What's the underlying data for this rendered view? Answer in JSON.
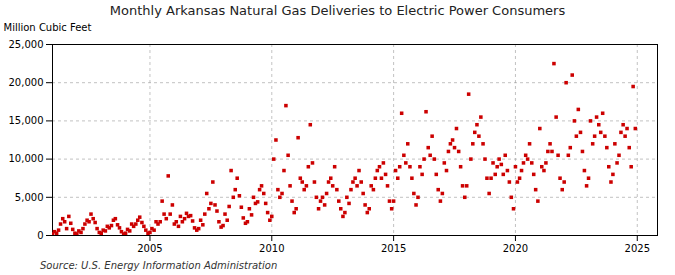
{
  "chart_data": {
    "type": "scatter",
    "title": "Monthly Arkansas Natural Gas Deliveries to Electric Power Consumers",
    "ylabel": "Million Cubic Feet",
    "annotations": [
      "Source: U.S. Energy Information Administration"
    ],
    "color": "#cc0000",
    "marker": "square",
    "grid": true,
    "xlim": [
      2001.0,
      2025.83
    ],
    "xticks": [
      2005,
      2010,
      2015,
      2020,
      2025
    ],
    "ylim": [
      0,
      25000
    ],
    "yticks": [
      0,
      {
        "value": 5000,
        "label": "5,000"
      },
      {
        "value": 10000,
        "label": "10,000"
      },
      {
        "value": 15000,
        "label": "15,000"
      },
      {
        "value": 20000,
        "label": "20,000"
      },
      {
        "value": 25000,
        "label": "25,000"
      }
    ],
    "x": [
      2001.0,
      2001.08,
      2001.17,
      2001.25,
      2001.33,
      2001.42,
      2001.5,
      2001.58,
      2001.67,
      2001.75,
      2001.83,
      2001.92,
      2002.0,
      2002.08,
      2002.17,
      2002.25,
      2002.33,
      2002.42,
      2002.5,
      2002.58,
      2002.67,
      2002.75,
      2002.83,
      2002.92,
      2003.0,
      2003.08,
      2003.17,
      2003.25,
      2003.33,
      2003.42,
      2003.5,
      2003.58,
      2003.67,
      2003.75,
      2003.83,
      2003.92,
      2004.0,
      2004.08,
      2004.17,
      2004.25,
      2004.33,
      2004.42,
      2004.5,
      2004.58,
      2004.67,
      2004.75,
      2004.83,
      2004.92,
      2005.0,
      2005.08,
      2005.17,
      2005.25,
      2005.33,
      2005.42,
      2005.5,
      2005.58,
      2005.67,
      2005.75,
      2005.83,
      2005.92,
      2006.0,
      2006.08,
      2006.17,
      2006.25,
      2006.33,
      2006.42,
      2006.5,
      2006.58,
      2006.67,
      2006.75,
      2006.83,
      2006.92,
      2007.0,
      2007.08,
      2007.17,
      2007.25,
      2007.33,
      2007.42,
      2007.5,
      2007.58,
      2007.67,
      2007.75,
      2007.83,
      2007.92,
      2008.0,
      2008.08,
      2008.17,
      2008.25,
      2008.33,
      2008.42,
      2008.5,
      2008.58,
      2008.67,
      2008.75,
      2008.83,
      2008.92,
      2009.0,
      2009.08,
      2009.17,
      2009.25,
      2009.33,
      2009.42,
      2009.5,
      2009.58,
      2009.67,
      2009.75,
      2009.83,
      2009.92,
      2010.0,
      2010.08,
      2010.17,
      2010.25,
      2010.33,
      2010.42,
      2010.5,
      2010.58,
      2010.67,
      2010.75,
      2010.83,
      2010.92,
      2011.0,
      2011.08,
      2011.17,
      2011.25,
      2011.33,
      2011.42,
      2011.5,
      2011.58,
      2011.67,
      2011.75,
      2011.83,
      2011.92,
      2012.0,
      2012.08,
      2012.17,
      2012.25,
      2012.33,
      2012.42,
      2012.5,
      2012.58,
      2012.67,
      2012.75,
      2012.83,
      2012.92,
      2013.0,
      2013.08,
      2013.17,
      2013.25,
      2013.33,
      2013.42,
      2013.5,
      2013.58,
      2013.67,
      2013.75,
      2013.83,
      2013.92,
      2014.0,
      2014.08,
      2014.17,
      2014.25,
      2014.33,
      2014.42,
      2014.5,
      2014.58,
      2014.67,
      2014.75,
      2014.83,
      2014.92,
      2015.0,
      2015.08,
      2015.17,
      2015.25,
      2015.33,
      2015.42,
      2015.5,
      2015.58,
      2015.67,
      2015.75,
      2015.83,
      2015.92,
      2016.0,
      2016.08,
      2016.17,
      2016.25,
      2016.33,
      2016.42,
      2016.5,
      2016.58,
      2016.67,
      2016.75,
      2016.83,
      2016.92,
      2017.0,
      2017.08,
      2017.17,
      2017.25,
      2017.33,
      2017.42,
      2017.5,
      2017.58,
      2017.67,
      2017.75,
      2017.83,
      2017.92,
      2018.0,
      2018.08,
      2018.17,
      2018.25,
      2018.33,
      2018.42,
      2018.5,
      2018.58,
      2018.67,
      2018.75,
      2018.83,
      2018.92,
      2019.0,
      2019.08,
      2019.17,
      2019.25,
      2019.33,
      2019.42,
      2019.5,
      2019.58,
      2019.67,
      2019.75,
      2019.83,
      2019.92,
      2020.0,
      2020.08,
      2020.17,
      2020.25,
      2020.33,
      2020.42,
      2020.5,
      2020.58,
      2020.67,
      2020.75,
      2020.83,
      2020.92,
      2021.0,
      2021.08,
      2021.17,
      2021.25,
      2021.33,
      2021.42,
      2021.5,
      2021.58,
      2021.67,
      2021.75,
      2021.83,
      2021.92,
      2022.0,
      2022.08,
      2022.17,
      2022.25,
      2022.33,
      2022.42,
      2022.5,
      2022.58,
      2022.67,
      2022.75,
      2022.83,
      2022.92,
      2023.0,
      2023.08,
      2023.17,
      2023.25,
      2023.33,
      2023.42,
      2023.5,
      2023.58,
      2023.67,
      2023.75,
      2023.83,
      2023.92,
      2024.0,
      2024.08,
      2024.17,
      2024.25,
      2024.33,
      2024.42,
      2024.5,
      2024.58,
      2024.67,
      2024.75,
      2024.83,
      2024.92
    ],
    "values": [
      200,
      500,
      300,
      700,
      1500,
      2200,
      1800,
      900,
      2500,
      1600,
      800,
      300,
      200,
      600,
      400,
      900,
      1500,
      2000,
      1800,
      2800,
      2200,
      1700,
      900,
      400,
      300,
      700,
      600,
      1200,
      1000,
      1300,
      2000,
      2200,
      1400,
      1000,
      500,
      200,
      300,
      800,
      600,
      1500,
      1200,
      1500,
      2000,
      2400,
      1700,
      1200,
      700,
      300,
      400,
      900,
      700,
      1800,
      1500,
      1800,
      4500,
      2800,
      2200,
      7800,
      2800,
      4000,
      1500,
      1800,
      1200,
      2500,
      1800,
      2200,
      2900,
      2500,
      2600,
      1900,
      1000,
      700,
      900,
      2000,
      1400,
      2800,
      5500,
      3500,
      4200,
      7000,
      4000,
      3200,
      1800,
      1100,
      1300,
      2800,
      2000,
      3800,
      8500,
      5000,
      6000,
      7500,
      5200,
      3700,
      2300,
      1600,
      1800,
      3500,
      2700,
      5000,
      4200,
      4400,
      6000,
      6500,
      5500,
      4200,
      3000,
      2000,
      2500,
      10000,
      12500,
      6000,
      5000,
      5500,
      8500,
      17000,
      10500,
      6500,
      4500,
      3000,
      3500,
      12800,
      7500,
      7000,
      6000,
      6500,
      9000,
      14500,
      9500,
      7000,
      5000,
      3500,
      4500,
      5000,
      4000,
      5500,
      7000,
      7500,
      6500,
      9000,
      6000,
      4500,
      3500,
      2500,
      3000,
      5000,
      4200,
      6000,
      7000,
      7500,
      6500,
      8500,
      7000,
      5500,
      4000,
      3000,
      3500,
      6500,
      6000,
      7500,
      8500,
      9000,
      7500,
      9500,
      8000,
      6500,
      4500,
      3500,
      4500,
      8500,
      7500,
      9000,
      16000,
      10500,
      9500,
      12000,
      9000,
      7500,
      5500,
      4000,
      5000,
      9000,
      8000,
      10000,
      16200,
      11500,
      10500,
      13000,
      10000,
      8000,
      6000,
      4500,
      5500,
      9500,
      8500,
      11000,
      12000,
      12500,
      11500,
      14000,
      11000,
      9000,
      6500,
      5000,
      6500,
      18500,
      10000,
      12000,
      13500,
      14500,
      13000,
      15500,
      12000,
      10000,
      7500,
      5500,
      7500,
      9500,
      8000,
      9000,
      10000,
      9300,
      8000,
      10500,
      8500,
      7000,
      5000,
      3500,
      9000,
      7000,
      7500,
      8500,
      9500,
      10500,
      10000,
      12000,
      9500,
      8000,
      6000,
      4500,
      14000,
      9000,
      8500,
      9500,
      11000,
      12000,
      11000,
      22500,
      15500,
      10500,
      7500,
      6000,
      7000,
      20000,
      10500,
      11500,
      21000,
      15000,
      13000,
      16500,
      13500,
      11000,
      8500,
      6500,
      7500,
      15000,
      12000,
      13000,
      15500,
      14500,
      13500,
      16000,
      13000,
      11500,
      9000,
      7000,
      8000,
      12000,
      9500,
      10500,
      13500,
      14500,
      13000,
      14000,
      11500,
      9000,
      19500,
      14000
    ]
  }
}
